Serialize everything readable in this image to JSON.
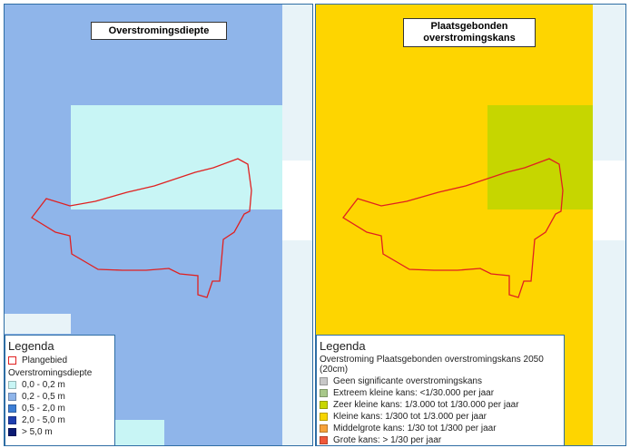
{
  "left_map": {
    "title": "Overstromingsdiepte",
    "legend": {
      "heading": "Legenda",
      "boundary_label": "Plangebied",
      "group_title": "Overstromingsdiepte",
      "classes": [
        {
          "label": "0,0 - 0,2 m",
          "color": "#c8f5f5"
        },
        {
          "label": "0,2 - 0,5 m",
          "color": "#8fb5ea"
        },
        {
          "label": "0,5 - 2,0 m",
          "color": "#3d7fd6"
        },
        {
          "label": "2,0 - 5,0 m",
          "color": "#1f3fb0"
        },
        {
          "label": "> 5,0 m",
          "color": "#0b1a73"
        }
      ]
    }
  },
  "right_map": {
    "title_line1": "Plaatsgebonden",
    "title_line2": "overstromingskans",
    "legend": {
      "heading": "Legenda",
      "group_title": "Overstroming Plaatsgebonden overstromingskans 2050 (20cm)",
      "classes": [
        {
          "label": "Geen significante overstromingskans",
          "color": "#c8c8c8"
        },
        {
          "label": "Extreem kleine kans: <1/30.000 per jaar",
          "color": "#a8c88a"
        },
        {
          "label": "Zeer kleine kans: 1/3.000 tot 1/30.000 per jaar",
          "color": "#c8d600"
        },
        {
          "label": "Kleine kans: 1/300 tot 1/3.000 per jaar",
          "color": "#f7d500"
        },
        {
          "label": "Middelgrote kans: 1/30 tot 1/300 per jaar",
          "color": "#f7a23a"
        },
        {
          "label": "Grote kans: > 1/30 per jaar",
          "color": "#f0583a"
        }
      ]
    }
  },
  "colors": {
    "depth_light": "#c8f5f5",
    "depth_medium": "#8fb5ea",
    "chance_small": "#fed500",
    "chance_very_small": "#c6d600",
    "boundary": "#e02020",
    "background_pale": "#e8f3f8"
  }
}
